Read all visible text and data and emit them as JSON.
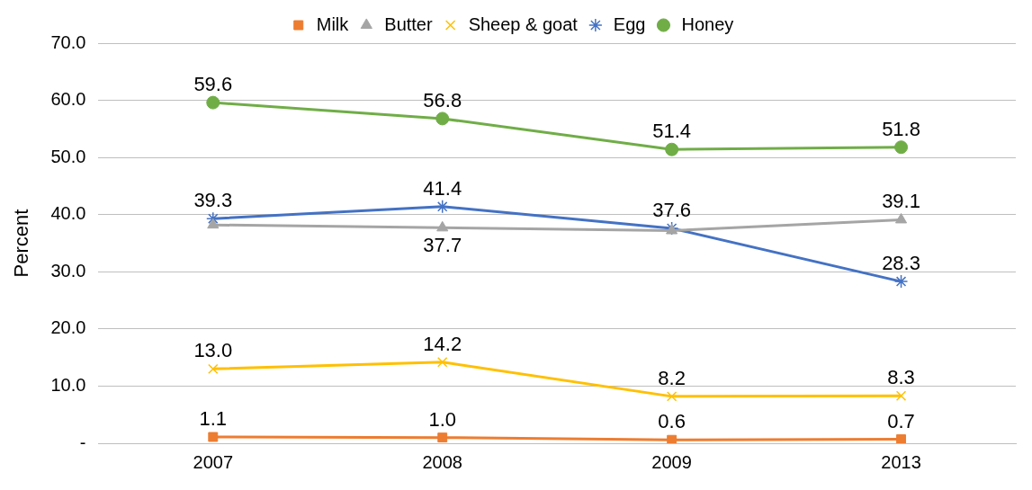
{
  "chart_data": {
    "type": "line",
    "ylabel": "Percent",
    "categories": [
      "2007",
      "2008",
      "2009",
      "2013"
    ],
    "ylim": [
      0,
      70
    ],
    "yticks": [
      {
        "value": 0,
        "label": "-"
      },
      {
        "value": 10,
        "label": "10.0"
      },
      {
        "value": 20,
        "label": "20.0"
      },
      {
        "value": 30,
        "label": "30.0"
      },
      {
        "value": 40,
        "label": "40.0"
      },
      {
        "value": 50,
        "label": "50.0"
      },
      {
        "value": 60,
        "label": "60.0"
      },
      {
        "value": 70,
        "label": "70.0"
      }
    ],
    "grid": "y",
    "legend": "top",
    "series": [
      {
        "name": "Milk",
        "color": "#ed7d31",
        "marker": "square",
        "values": [
          1.1,
          1.0,
          0.6,
          0.7
        ],
        "value_labels": [
          "1.1",
          "1.0",
          "0.6",
          "0.7"
        ]
      },
      {
        "name": "Butter",
        "color": "#a5a5a5",
        "marker": "triangle",
        "values": [
          38.2,
          37.7,
          37.2,
          39.1
        ],
        "value_labels": [
          null,
          "37.7",
          null,
          "39.1"
        ]
      },
      {
        "name": "Sheep & goat",
        "color": "#ffc000",
        "marker": "cross",
        "values": [
          13.0,
          14.2,
          8.2,
          8.3
        ],
        "value_labels": [
          "13.0",
          "14.2",
          "8.2",
          "8.3"
        ]
      },
      {
        "name": "Egg",
        "color": "#4472c4",
        "marker": "cross",
        "values": [
          39.3,
          41.4,
          37.6,
          28.3
        ],
        "value_labels": [
          "39.3",
          "41.4",
          "37.6",
          "28.3"
        ]
      },
      {
        "name": "Honey",
        "color": "#70ad47",
        "marker": "circle",
        "values": [
          59.6,
          56.8,
          51.4,
          51.8
        ],
        "value_labels": [
          "59.6",
          "56.8",
          "51.4",
          "51.8"
        ]
      }
    ]
  }
}
